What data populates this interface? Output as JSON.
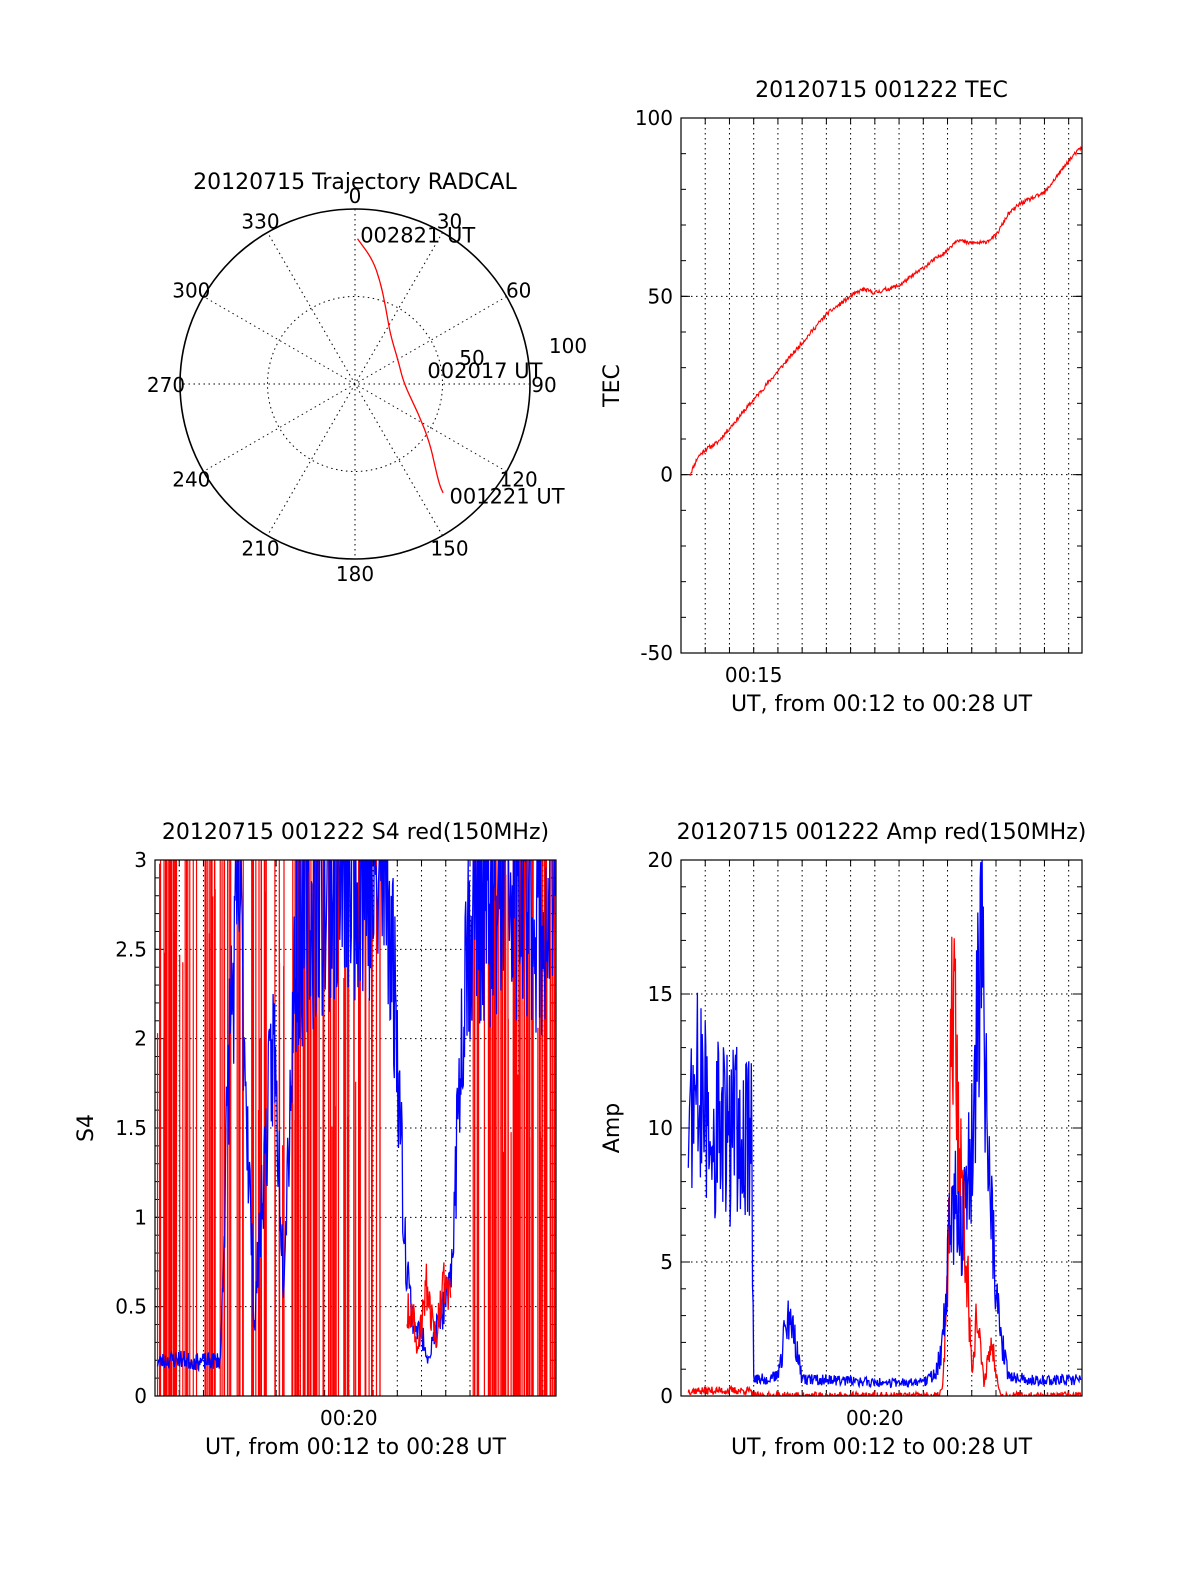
{
  "colors": {
    "red": "#ff0000",
    "blue": "#0000ff",
    "axis": "#000000"
  },
  "chart_data": [
    {
      "id": "trajectory",
      "type": "scatter",
      "projection": "polar",
      "title": "20120715 Trajectory RADCAL",
      "azimuth_labels": [
        "0",
        "30",
        "60",
        "90",
        "120",
        "150",
        "180",
        "210",
        "240",
        "270",
        "300",
        "330"
      ],
      "radial_labels": [
        "50",
        "100"
      ],
      "radial_range": [
        0,
        100
      ],
      "grid": true,
      "track": {
        "color": "red",
        "points": [
          {
            "az": 1,
            "r": 83
          },
          {
            "az": 8,
            "r": 72
          },
          {
            "az": 14,
            "r": 60
          },
          {
            "az": 22,
            "r": 47
          },
          {
            "az": 35,
            "r": 35
          },
          {
            "az": 62,
            "r": 28
          },
          {
            "az": 90,
            "r": 28
          },
          {
            "az": 115,
            "r": 40
          },
          {
            "az": 128,
            "r": 54
          },
          {
            "az": 136,
            "r": 66
          },
          {
            "az": 140,
            "r": 75
          },
          {
            "az": 141,
            "r": 80
          }
        ]
      },
      "annotations": [
        {
          "text": "002821 UT",
          "az": 2,
          "r": 85
        },
        {
          "text": "002017 UT",
          "az": 80,
          "r": 42
        },
        {
          "text": "001221 UT",
          "az": 140,
          "r": 84
        }
      ]
    },
    {
      "id": "tec",
      "type": "line",
      "title": "20120715 001222 TEC",
      "xlabel": "UT, from 00:12 to 00:28 UT",
      "ylabel": "TEC",
      "xlim_minutes": [
        12.0,
        28.55
      ],
      "ylim": [
        -50,
        100
      ],
      "yticks": [
        -50,
        0,
        50,
        100
      ],
      "xtick_labels": [
        {
          "minute": 15,
          "label": "00:15"
        }
      ],
      "grid": true,
      "series": [
        {
          "color": "red",
          "x": [
            12.37,
            12.7,
            13.0,
            13.5,
            14.0,
            15.0,
            16.0,
            17.0,
            18.0,
            19.0,
            19.5,
            20.0,
            21.0,
            22.0,
            23.0,
            23.4,
            23.8,
            24.5,
            25.0,
            25.5,
            26.0,
            27.0,
            28.0,
            28.55
          ],
          "y": [
            0,
            5,
            7,
            9,
            13,
            21,
            29,
            37,
            45,
            50,
            52,
            51,
            53,
            58,
            63,
            66,
            65,
            65,
            67,
            73,
            76,
            79,
            88,
            92
          ]
        }
      ]
    },
    {
      "id": "s4",
      "type": "line",
      "title": "20120715 001222 S4 red(150MHz)",
      "xlabel": "UT, from 00:12 to 00:28 UT",
      "ylabel": "S4",
      "xlim_minutes": [
        12.0,
        28.55
      ],
      "ylim": [
        0,
        3
      ],
      "yticks": [
        0,
        0.5,
        1,
        1.5,
        2,
        2.5,
        3
      ],
      "ytick_labels": [
        "0",
        "0.5",
        "1",
        "1.5",
        "2",
        "2.5",
        "3"
      ],
      "xtick_labels": [
        {
          "minute": 20,
          "label": "00:20"
        }
      ],
      "grid": true,
      "series": [
        {
          "color": "blue",
          "x": [
            12.1,
            12.5,
            13.0,
            13.6,
            14.7,
            14.9,
            15.1,
            15.5,
            16.1,
            16.4,
            16.9,
            17.3,
            17.8,
            18.4,
            19.0,
            19.5,
            20.0,
            20.5,
            21.0,
            21.6,
            22.0,
            22.3,
            22.6,
            22.9,
            23.1,
            23.3,
            23.8,
            24.2,
            24.8,
            25.3,
            26.0,
            26.5,
            27.0,
            27.5,
            28.0,
            28.5
          ],
          "y": [
            0.19,
            0.2,
            0.21,
            0.19,
            0.2,
            1.2,
            2.1,
            2.8,
            0.4,
            1.1,
            2.0,
            0.7,
            2.5,
            2.7,
            2.8,
            2.9,
            2.9,
            3.0,
            2.8,
            2.9,
            2.0,
            0.9,
            0.45,
            0.35,
            0.3,
            0.22,
            0.45,
            0.6,
            2.5,
            2.8,
            2.6,
            2.9,
            2.7,
            2.8,
            2.6,
            2.8
          ]
        },
        {
          "color": "red",
          "x": [
            22.4,
            22.6,
            22.8,
            23.0,
            23.2,
            23.4,
            23.6,
            23.8,
            24.0,
            24.2
          ],
          "y": [
            0.45,
            0.5,
            0.3,
            0.4,
            0.6,
            0.45,
            0.35,
            0.5,
            0.7,
            0.55
          ]
        }
      ]
    },
    {
      "id": "amp",
      "type": "line",
      "title": "20120715 001222 Amp red(150MHz)",
      "xlabel": "UT, from 00:12 to 00:28 UT",
      "ylabel": "Amp",
      "xlim_minutes": [
        12.0,
        28.55
      ],
      "ylim": [
        0,
        20
      ],
      "yticks": [
        0,
        5,
        10,
        15,
        20
      ],
      "xtick_labels": [
        {
          "minute": 20,
          "label": "00:20"
        }
      ],
      "grid": true,
      "series": [
        {
          "color": "red",
          "x": [
            12.3,
            14.8,
            15.0,
            22.6,
            22.8,
            23.0,
            23.2,
            23.5,
            23.8,
            24.0,
            24.2,
            24.5,
            24.8,
            25.2,
            28.5
          ],
          "y": [
            0.2,
            0.2,
            0.0,
            0.0,
            0.3,
            4.0,
            15.0,
            9.0,
            5.0,
            1.0,
            3.0,
            0.5,
            2.0,
            0.0,
            0.0
          ]
        },
        {
          "color": "blue",
          "x": [
            12.3,
            12.6,
            13.0,
            13.5,
            14.0,
            14.5,
            14.9,
            15.0,
            16.0,
            16.4,
            16.6,
            17.0,
            18.0,
            20.0,
            22.0,
            22.5,
            22.8,
            23.0,
            23.3,
            23.6,
            24.0,
            24.2,
            24.4,
            24.7,
            25.0,
            25.5,
            26.5,
            28.5
          ],
          "y": [
            10.0,
            11.5,
            10.5,
            10.0,
            9.5,
            9.8,
            9.5,
            0.6,
            0.7,
            3.0,
            2.5,
            0.6,
            0.6,
            0.5,
            0.5,
            0.8,
            2.0,
            5.0,
            8.0,
            5.5,
            9.0,
            13.0,
            15.8,
            9.0,
            3.5,
            0.7,
            0.6,
            0.6
          ]
        }
      ]
    }
  ]
}
